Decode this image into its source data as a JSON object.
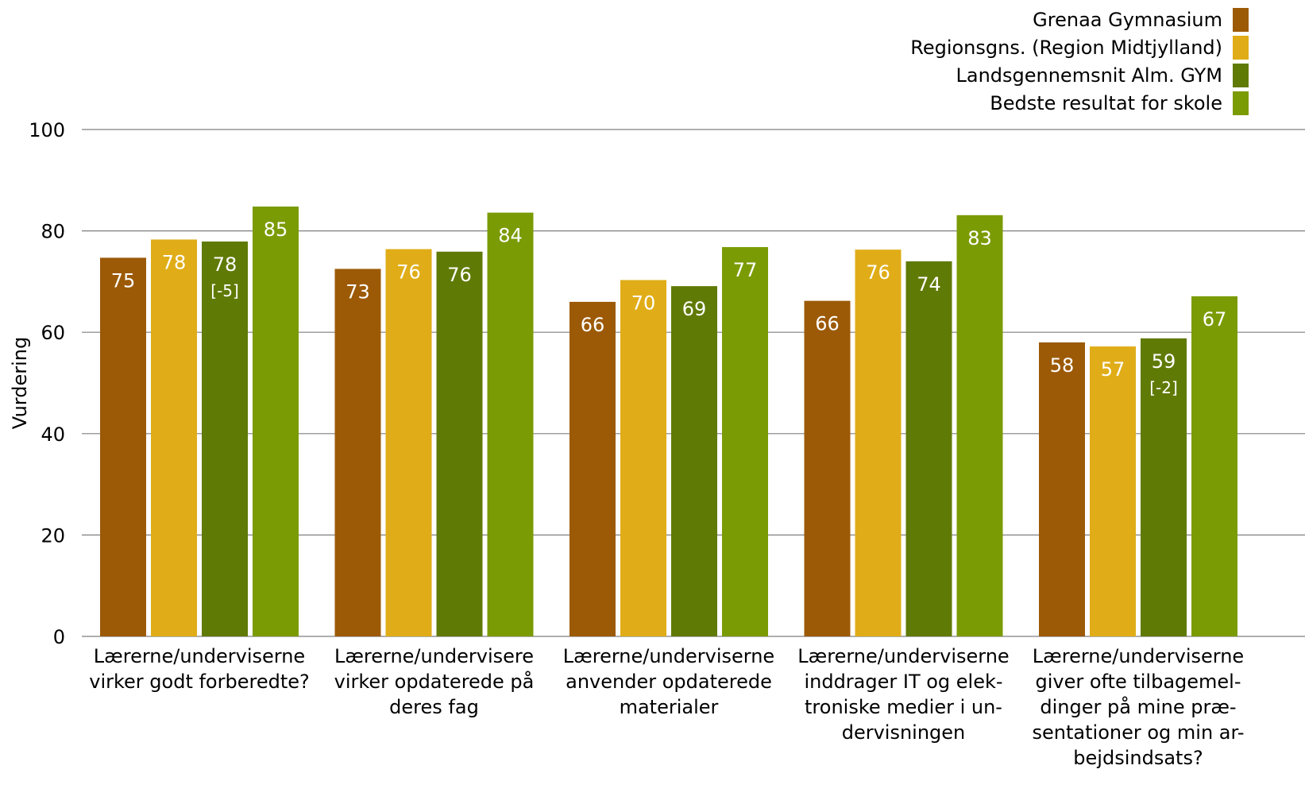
{
  "chart_data": {
    "type": "bar",
    "ylabel": "Vurdering",
    "ylim": [
      0,
      100
    ],
    "yticks": [
      0,
      20,
      40,
      60,
      80,
      100
    ],
    "grid": true,
    "legend_position": "top-right",
    "categories": [
      [
        "Lærerne/underviserne",
        "virker godt forberedte?"
      ],
      [
        "Lærerne/undervisere",
        "virker opdaterede på",
        "deres fag"
      ],
      [
        "Lærerne/underviserne",
        "anvender opdaterede",
        "materialer"
      ],
      [
        "Lærerne/underviserne",
        "inddrager IT og elek-",
        "troniske medier i un-",
        "dervisningen"
      ],
      [
        "Lærerne/underviserne",
        "giver ofte tilbagemel-",
        "dinger på mine præ-",
        "sentationer og min ar-",
        "bejdsindsats?"
      ]
    ],
    "series": [
      {
        "name": "Grenaa Gymnasium",
        "color": "#9c5a07",
        "values": [
          74.7,
          72.5,
          66.0,
          66.2,
          58.0
        ],
        "labels": [
          "75",
          "73",
          "66",
          "66",
          "58"
        ],
        "sublabels": [
          "",
          "",
          "",
          "",
          ""
        ]
      },
      {
        "name": "Regionsgns. (Region Midtjylland)",
        "color": "#e0ad18",
        "values": [
          78.3,
          76.4,
          70.3,
          76.3,
          57.2
        ],
        "labels": [
          "78",
          "76",
          "70",
          "76",
          "57"
        ],
        "sublabels": [
          "",
          "",
          "",
          "",
          ""
        ]
      },
      {
        "name": "Landsgennemsnit Alm. GYM",
        "color": "#607a06",
        "values": [
          77.9,
          75.9,
          69.1,
          74.0,
          58.8
        ],
        "labels": [
          "78",
          "76",
          "69",
          "74",
          "59"
        ],
        "sublabels": [
          "[-5]",
          "",
          "",
          "",
          "[-2]"
        ]
      },
      {
        "name": "Bedste resultat for skole",
        "color": "#7b9b04",
        "values": [
          84.8,
          83.6,
          76.8,
          83.1,
          67.1
        ],
        "labels": [
          "85",
          "84",
          "77",
          "83",
          "67"
        ],
        "sublabels": [
          "",
          "",
          "",
          "",
          ""
        ]
      }
    ]
  }
}
